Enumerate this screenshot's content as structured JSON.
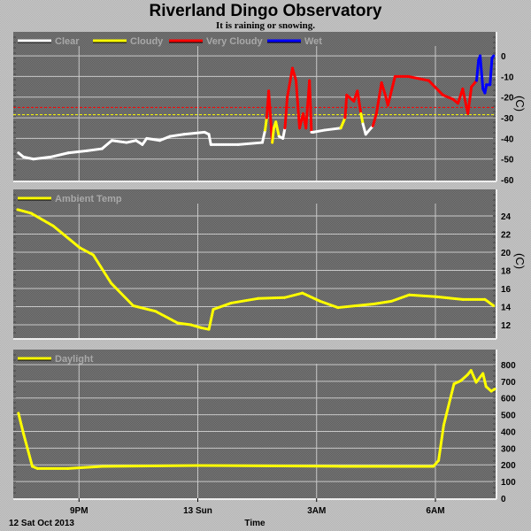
{
  "title": "Riverland Dingo Observatory",
  "subtitle": "It is raining or snowing.",
  "x_axis": {
    "label": "Time",
    "date_label": "12 Sat Oct 2013"
  },
  "chart_data": [
    {
      "type": "line",
      "name": "sky-temperature",
      "xunit": "hours since 18:00 12 Oct 2013",
      "xlim": [
        19.34,
        31.52
      ],
      "ylim": [
        -60.4,
        11.6
      ],
      "ylabel": "(C)",
      "x_ticks": [
        {
          "x": 21,
          "label": "9PM"
        },
        {
          "x": 24,
          "label": "13 Sun"
        },
        {
          "x": 27,
          "label": "3AM"
        },
        {
          "x": 30,
          "label": "6AM"
        }
      ],
      "y_ticks": [
        0,
        -10,
        -20,
        -30,
        -40,
        -50,
        -60
      ],
      "grid": true,
      "legend_position": "top-left",
      "legend": [
        {
          "label": "Clear",
          "color": "#ffffff"
        },
        {
          "label": "Cloudy",
          "color": "#ffff00"
        },
        {
          "label": "Very Cloudy",
          "color": "#ff0000"
        },
        {
          "label": "Wet",
          "color": "#0000ff"
        }
      ],
      "thresholds": [
        {
          "y": -25,
          "color": "#ff0000"
        },
        {
          "y": -28.5,
          "color": "#ffff00"
        }
      ],
      "points": [
        [
          19.47,
          -47,
          0
        ],
        [
          19.6,
          -49,
          0
        ],
        [
          19.85,
          -50,
          0
        ],
        [
          20.28,
          -49,
          0
        ],
        [
          20.73,
          -47,
          0
        ],
        [
          21.2,
          -46,
          0
        ],
        [
          21.58,
          -45,
          0
        ],
        [
          21.83,
          -41,
          0
        ],
        [
          22.2,
          -42,
          0
        ],
        [
          22.44,
          -41,
          0
        ],
        [
          22.6,
          -43,
          0
        ],
        [
          22.71,
          -40,
          0
        ],
        [
          23.04,
          -41,
          0
        ],
        [
          23.3,
          -39,
          0
        ],
        [
          23.65,
          -38,
          0
        ],
        [
          24.17,
          -37,
          0
        ],
        [
          24.28,
          -38,
          0
        ],
        [
          24.33,
          -43,
          0
        ],
        [
          25.02,
          -43,
          0
        ],
        [
          25.63,
          -42,
          0
        ],
        [
          25.7,
          -36,
          0
        ],
        [
          25.74,
          -30,
          1
        ],
        [
          25.79,
          -17,
          2
        ],
        [
          25.83,
          -28,
          2
        ],
        [
          25.88,
          -42,
          2
        ],
        [
          25.92,
          -35,
          1
        ],
        [
          25.97,
          -32,
          1
        ],
        [
          26.05,
          -39,
          1
        ],
        [
          26.15,
          -40,
          0
        ],
        [
          26.2,
          -35,
          0
        ],
        [
          26.26,
          -20,
          2
        ],
        [
          26.39,
          -6,
          2
        ],
        [
          26.48,
          -12,
          2
        ],
        [
          26.57,
          -35,
          2
        ],
        [
          26.66,
          -28,
          2
        ],
        [
          26.73,
          -35,
          2
        ],
        [
          26.82,
          -12,
          2
        ],
        [
          26.87,
          -37,
          2
        ],
        [
          26.91,
          -37,
          0
        ],
        [
          27.2,
          -36,
          0
        ],
        [
          27.61,
          -35,
          0
        ],
        [
          27.72,
          -30,
          1
        ],
        [
          27.76,
          -19,
          2
        ],
        [
          27.94,
          -22,
          2
        ],
        [
          28.03,
          -17,
          2
        ],
        [
          28.12,
          -28,
          2
        ],
        [
          28.17,
          -33,
          1
        ],
        [
          28.24,
          -38,
          0
        ],
        [
          28.42,
          -34,
          0
        ],
        [
          28.51,
          -28,
          2
        ],
        [
          28.64,
          -13,
          2
        ],
        [
          28.75,
          -20,
          2
        ],
        [
          28.8,
          -24,
          2
        ],
        [
          28.98,
          -10,
          2
        ],
        [
          29.31,
          -10,
          2
        ],
        [
          29.83,
          -12,
          2
        ],
        [
          30.19,
          -19,
          2
        ],
        [
          30.44,
          -21,
          2
        ],
        [
          30.57,
          -23,
          2
        ],
        [
          30.69,
          -16,
          2
        ],
        [
          30.82,
          -28,
          2
        ],
        [
          30.91,
          -15,
          2
        ],
        [
          31.04,
          -12,
          2
        ],
        [
          31.09,
          -2,
          3
        ],
        [
          31.13,
          0,
          3
        ],
        [
          31.2,
          -16,
          3
        ],
        [
          31.25,
          -18,
          3
        ],
        [
          31.29,
          -14,
          3
        ],
        [
          31.38,
          -14,
          3
        ],
        [
          31.43,
          -1,
          3
        ],
        [
          31.47,
          0,
          3
        ]
      ]
    },
    {
      "type": "line",
      "name": "ambient-temperature",
      "xlim": [
        19.34,
        31.52
      ],
      "ylim": [
        10.54,
        26.93
      ],
      "ylabel": "(C)",
      "y_ticks": [
        12,
        14,
        16,
        18,
        20,
        22,
        24
      ],
      "grid": true,
      "legend_position": "top-left",
      "legend": [
        {
          "label": "Ambient Temp",
          "color": "#ffff00"
        }
      ],
      "points": [
        [
          19.45,
          24.7
        ],
        [
          19.79,
          24.3
        ],
        [
          20.35,
          22.9
        ],
        [
          21.02,
          20.5
        ],
        [
          21.36,
          19.7
        ],
        [
          21.81,
          16.6
        ],
        [
          22.37,
          14.1
        ],
        [
          22.93,
          13.5
        ],
        [
          23.49,
          12.2
        ],
        [
          23.83,
          12.0
        ],
        [
          24.06,
          11.7
        ],
        [
          24.28,
          11.5
        ],
        [
          24.39,
          13.7
        ],
        [
          24.84,
          14.4
        ],
        [
          25.52,
          14.9
        ],
        [
          26.19,
          15.0
        ],
        [
          26.64,
          15.5
        ],
        [
          27.09,
          14.6
        ],
        [
          27.54,
          13.9
        ],
        [
          27.99,
          14.1
        ],
        [
          28.44,
          14.3
        ],
        [
          28.89,
          14.6
        ],
        [
          29.34,
          15.3
        ],
        [
          30.01,
          15.1
        ],
        [
          30.69,
          14.8
        ],
        [
          31.25,
          14.8
        ],
        [
          31.47,
          14.1
        ]
      ]
    },
    {
      "type": "line",
      "name": "daylight",
      "xlim": [
        19.34,
        31.52
      ],
      "ylim": [
        0,
        890
      ],
      "y_ticks": [
        0,
        100,
        200,
        300,
        400,
        500,
        600,
        700,
        800
      ],
      "grid": true,
      "legend_position": "top-left",
      "legend": [
        {
          "label": "Daylight",
          "color": "#ffff00"
        }
      ],
      "points": [
        [
          19.47,
          509
        ],
        [
          19.6,
          385
        ],
        [
          19.82,
          191
        ],
        [
          19.95,
          178
        ],
        [
          20.72,
          178
        ],
        [
          21.59,
          191
        ],
        [
          24.0,
          196
        ],
        [
          27.62,
          191
        ],
        [
          29.95,
          191
        ],
        [
          30.08,
          226
        ],
        [
          30.21,
          438
        ],
        [
          30.47,
          685
        ],
        [
          30.64,
          703
        ],
        [
          30.81,
          739
        ],
        [
          30.9,
          765
        ],
        [
          31.03,
          694
        ],
        [
          31.2,
          747
        ],
        [
          31.28,
          668
        ],
        [
          31.41,
          641
        ],
        [
          31.5,
          654
        ]
      ]
    }
  ]
}
